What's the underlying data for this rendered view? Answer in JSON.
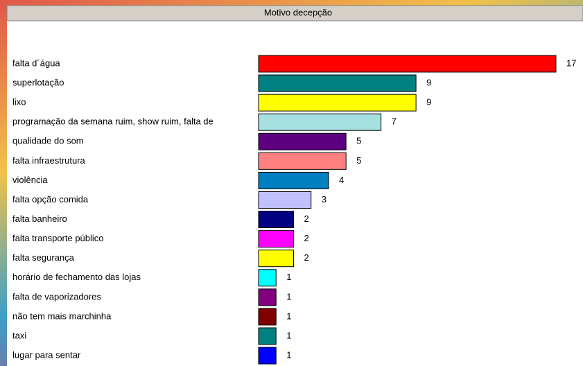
{
  "chart_data": {
    "type": "bar",
    "orientation": "horizontal",
    "title": "Motivo decepção",
    "categories": [
      "falta d´água",
      "superlotação",
      "lixo",
      "programação da semana ruim, show ruim, falta de",
      "qualidade do som",
      "falta infraestrutura",
      "violência",
      "falta opção comida",
      "falta banheiro",
      "falta transporte público",
      "falta segurança",
      "horário de fechamento das lojas",
      "falta de vaporizadores",
      "não tem mais marchinha",
      "taxi",
      "lugar para sentar"
    ],
    "values": [
      17,
      9,
      9,
      7,
      5,
      5,
      4,
      3,
      2,
      2,
      2,
      1,
      1,
      1,
      1,
      1
    ],
    "colors": [
      "#ff0000",
      "#008080",
      "#ffff00",
      "#a6e0e0",
      "#5c0080",
      "#ff8080",
      "#0080c0",
      "#c0c0ff",
      "#000080",
      "#ff00ff",
      "#ffff00",
      "#00ffff",
      "#800080",
      "#800000",
      "#008080",
      "#0000ff"
    ]
  }
}
